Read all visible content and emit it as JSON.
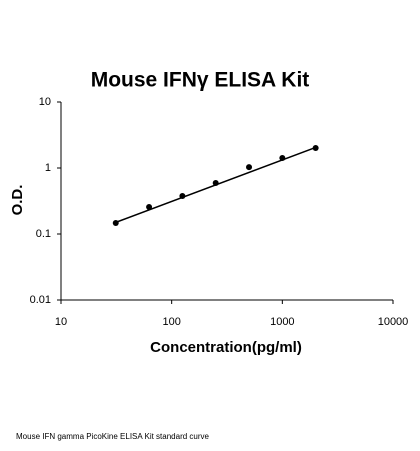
{
  "chart_data": {
    "type": "scatter",
    "title": "Mouse IFNγ ELISA Kit",
    "x_label": "Concentration(pg/ml)",
    "y_label": "O.D.",
    "caption": "Mouse IFN gamma PicoKine ELISA Kit standard curve",
    "x": [
      31.25,
      62.5,
      125,
      250,
      500,
      1000,
      2000
    ],
    "values": [
      0.147,
      0.257,
      0.377,
      0.593,
      1.03,
      1.42,
      2.01
    ],
    "color": "#000000",
    "fit": {
      "x": [
        31.25,
        2000
      ],
      "values": [
        0.15,
        2.05
      ]
    },
    "xscale": "log",
    "yscale": "log",
    "xlim": [
      10,
      10000
    ],
    "xticks": [
      10,
      100,
      1000,
      10000
    ],
    "ylim": [
      0.01,
      10
    ],
    "yticks": [
      0.01,
      0.1,
      1,
      10
    ]
  }
}
